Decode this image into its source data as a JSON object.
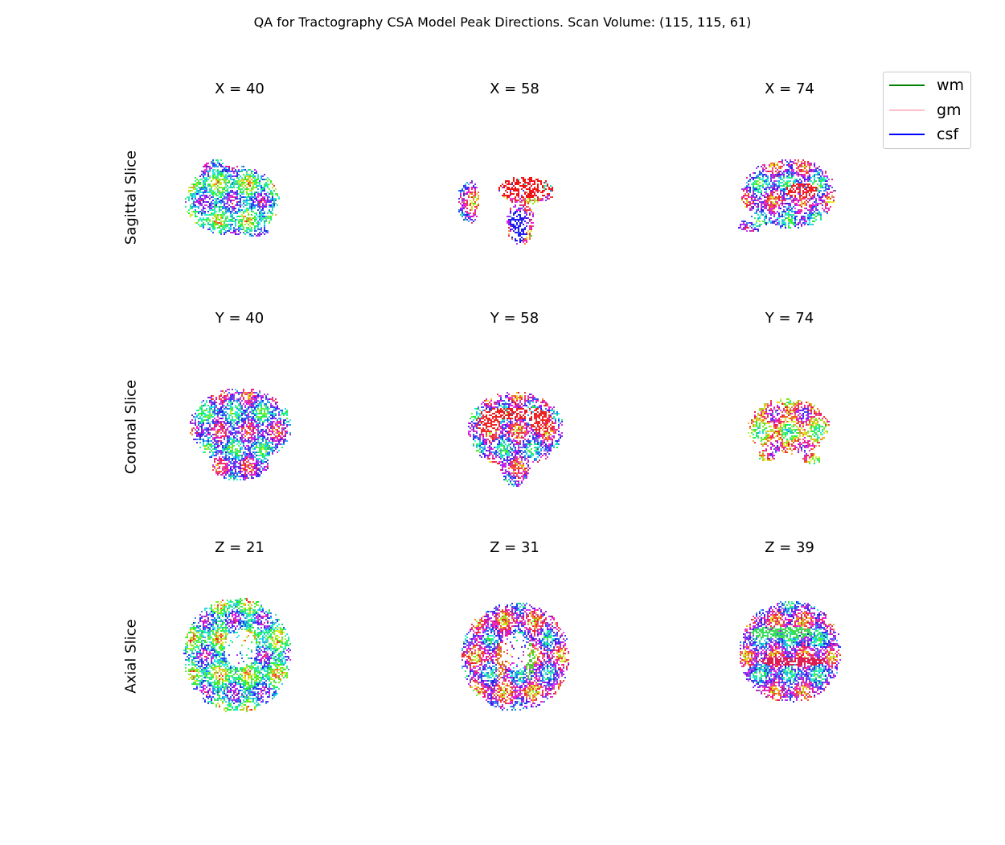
{
  "figure": {
    "title": "QA for Tractography CSA Model Peak Directions. Scan Volume: (115, 115, 61)"
  },
  "rows": [
    {
      "label": "Sagittal Slice",
      "panels": [
        {
          "title": "X = 40",
          "kind": "sag-a"
        },
        {
          "title": "X = 58",
          "kind": "sag-mid"
        },
        {
          "title": "X = 74",
          "kind": "sag-b"
        }
      ]
    },
    {
      "label": "Coronal Slice",
      "panels": [
        {
          "title": "Y = 40",
          "kind": "cor-a"
        },
        {
          "title": "Y = 58",
          "kind": "cor-mid"
        },
        {
          "title": "Y = 74",
          "kind": "cor-b"
        }
      ]
    },
    {
      "label": "Axial Slice",
      "panels": [
        {
          "title": "Z = 21",
          "kind": "ax-a"
        },
        {
          "title": "Z = 31",
          "kind": "ax-mid"
        },
        {
          "title": "Z = 39",
          "kind": "ax-b"
        }
      ]
    }
  ],
  "legend": {
    "items": [
      {
        "label": "wm",
        "color": "#008000"
      },
      {
        "label": "gm",
        "color": "#ffc0cb"
      },
      {
        "label": "csf",
        "color": "#0000ff"
      }
    ]
  }
}
